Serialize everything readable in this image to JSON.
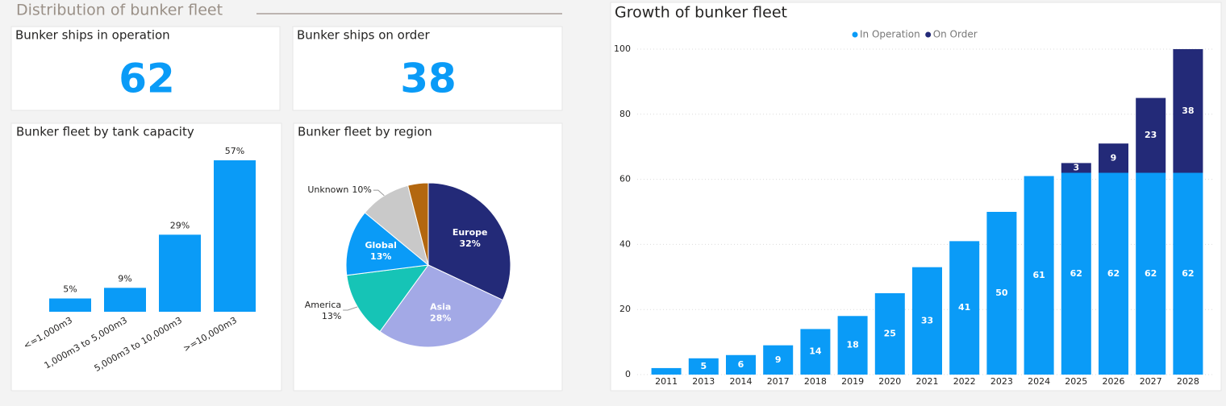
{
  "section_title": "Distribution of bunker fleet",
  "kpis": [
    {
      "label": "Bunker ships in operation",
      "value": 62
    },
    {
      "label": "Bunker ships on order",
      "value": 38
    }
  ],
  "chart_data": [
    {
      "type": "bar",
      "title": "Bunker fleet by tank capacity",
      "categories": [
        "<=1,000m3",
        "1,000m3 to 5,000m3",
        "5,000m3 to 10,000m3",
        ">=10,000m3"
      ],
      "values": [
        5,
        9,
        29,
        57
      ],
      "value_labels": [
        "5%",
        "9%",
        "29%",
        "57%"
      ],
      "color": "#0a9bf7"
    },
    {
      "type": "pie",
      "title": "Bunker fleet by region",
      "categories": [
        "Europe",
        "Asia",
        "America",
        "Global",
        "Unknown",
        null
      ],
      "values": [
        32,
        28,
        13,
        13,
        10,
        4
      ],
      "value_labels": [
        "32%",
        "28%",
        "13%",
        "13%",
        "10%",
        null
      ],
      "colors": [
        "#232a78",
        "#a3a9e6",
        "#16c4b6",
        "#0a9bf7",
        "#c9c9c9",
        "#b3670f"
      ]
    },
    {
      "type": "stacked_bar",
      "title": "Growth of bunker fleet",
      "categories": [
        "2011",
        "2013",
        "2014",
        "2017",
        "2018",
        "2019",
        "2020",
        "2021",
        "2022",
        "2023",
        "2024",
        "2025",
        "2026",
        "2027",
        "2028"
      ],
      "series": [
        {
          "name": "In Operation",
          "color": "#0a9bf7",
          "values": [
            2,
            5,
            6,
            9,
            14,
            18,
            25,
            33,
            41,
            50,
            61,
            62,
            62,
            62,
            62
          ]
        },
        {
          "name": "On Order",
          "color": "#232a78",
          "values": [
            null,
            null,
            null,
            null,
            null,
            null,
            null,
            null,
            null,
            null,
            null,
            3,
            9,
            23,
            38
          ]
        }
      ],
      "ylim": [
        0,
        100
      ],
      "yticks": [
        0,
        20,
        40,
        60,
        80,
        100
      ],
      "grid": true,
      "legend": "top"
    }
  ]
}
